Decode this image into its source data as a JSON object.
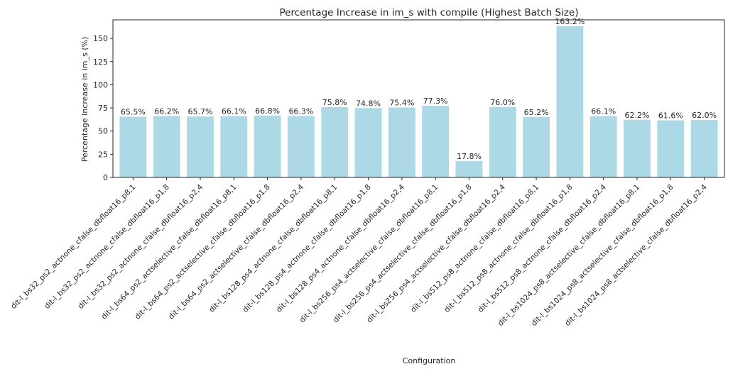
{
  "chart_data": {
    "type": "bar",
    "title": "Percentage Increase in im_s with compile (Highest Batch Size)",
    "xlabel": "Configuration",
    "ylabel": "Percentage Increase in im_s (%)",
    "ylim": [
      0,
      170
    ],
    "yticks": [
      0,
      25,
      50,
      75,
      100,
      125,
      150
    ],
    "grid": false,
    "bar_color": "#add8e6",
    "categories": [
      "dit-l_bs32_ps2_actnone_cfalse_dbfloat16_p8,1",
      "dit-l_bs32_ps2_actnone_cfalse_dbfloat16_p1,8",
      "dit-l_bs32_ps2_actnone_cfalse_dbfloat16_p2,4",
      "dit-l_bs64_ps2_actselective_cfalse_dbfloat16_p8,1",
      "dit-l_bs64_ps2_actselective_cfalse_dbfloat16_p1,8",
      "dit-l_bs64_ps2_actselective_cfalse_dbfloat16_p2,4",
      "dit-l_bs128_ps4_actnone_cfalse_dbfloat16_p8,1",
      "dit-l_bs128_ps4_actnone_cfalse_dbfloat16_p1,8",
      "dit-l_bs128_ps4_actnone_cfalse_dbfloat16_p2,4",
      "dit-l_bs256_ps4_actselective_cfalse_dbfloat16_p8,1",
      "dit-l_bs256_ps4_actselective_cfalse_dbfloat16_p1,8",
      "dit-l_bs256_ps4_actselective_cfalse_dbfloat16_p2,4",
      "dit-l_bs512_ps8_actnone_cfalse_dbfloat16_p8,1",
      "dit-l_bs512_ps8_actnone_cfalse_dbfloat16_p1,8",
      "dit-l_bs512_ps8_actnone_cfalse_dbfloat16_p2,4",
      "dit-l_bs1024_ps8_actselective_cfalse_dbfloat16_p8,1",
      "dit-l_bs1024_ps8_actselective_cfalse_dbfloat16_p1,8",
      "dit-l_bs1024_ps8_actselective_cfalse_dbfloat16_p2,4"
    ],
    "values": [
      65.5,
      66.2,
      65.7,
      66.1,
      66.8,
      66.3,
      75.8,
      74.8,
      75.4,
      77.3,
      17.8,
      76.0,
      65.2,
      163.2,
      66.1,
      62.2,
      61.6,
      62.0
    ],
    "data_labels": [
      "65.5%",
      "66.2%",
      "65.7%",
      "66.1%",
      "66.8%",
      "66.3%",
      "75.8%",
      "74.8%",
      "75.4%",
      "77.3%",
      "17.8%",
      "76.0%",
      "65.2%",
      "163.2%",
      "66.1%",
      "62.2%",
      "61.6%",
      "62.0%"
    ]
  }
}
